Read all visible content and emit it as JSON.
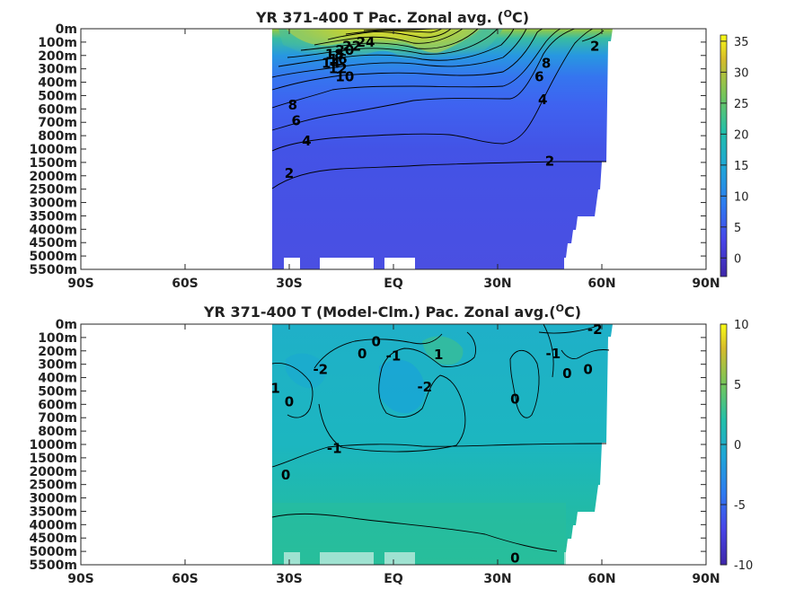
{
  "chart_data": [
    {
      "type": "heatmap",
      "title": "YR 371-400 T Pac. Zonal avg. (",
      "title_sup": "O",
      "title_tail": "C)",
      "x_ticks": [
        "90S",
        "60S",
        "30S",
        "EQ",
        "30N",
        "60N",
        "90N"
      ],
      "x_tick_values": [
        -90,
        -60,
        -30,
        0,
        30,
        60,
        90
      ],
      "xlim": [
        -90,
        90
      ],
      "y_ticks": [
        "0m",
        "100m",
        "200m",
        "300m",
        "400m",
        "500m",
        "600m",
        "700m",
        "800m",
        "1000m",
        "1500m",
        "2000m",
        "2500m",
        "3000m",
        "3500m",
        "4000m",
        "4500m",
        "5000m",
        "5500m"
      ],
      "data_extent": {
        "lat_start": -35,
        "lat_end": 62
      },
      "colorbar": {
        "min": -3,
        "max": 36,
        "ticks": [
          35,
          30,
          25,
          20,
          15,
          10,
          5,
          0
        ]
      },
      "contour_labels": [
        {
          "text": "24",
          "lat": -8,
          "depth_level": 1
        },
        {
          "text": "22",
          "lat": -12,
          "depth_level": 1.3
        },
        {
          "text": "20",
          "lat": -14,
          "depth_level": 1.6
        },
        {
          "text": "18",
          "lat": -17,
          "depth_level": 1.9
        },
        {
          "text": "16",
          "lat": -16,
          "depth_level": 2.3
        },
        {
          "text": "14",
          "lat": -18,
          "depth_level": 2.6
        },
        {
          "text": "12",
          "lat": -16,
          "depth_level": 3.0
        },
        {
          "text": "10",
          "lat": -14,
          "depth_level": 3.6
        },
        {
          "text": "8",
          "lat": -29,
          "depth_level": 5.7
        },
        {
          "text": "6",
          "lat": -28,
          "depth_level": 6.9
        },
        {
          "text": "4",
          "lat": -25,
          "depth_level": 8.4
        },
        {
          "text": "2",
          "lat": -30,
          "depth_level": 10.8
        },
        {
          "text": "2",
          "lat": 45,
          "depth_level": 9.9
        },
        {
          "text": "4",
          "lat": 43,
          "depth_level": 5.3
        },
        {
          "text": "6",
          "lat": 42,
          "depth_level": 3.6
        },
        {
          "text": "8",
          "lat": 44,
          "depth_level": 2.6
        },
        {
          "text": "2",
          "lat": 58,
          "depth_level": 1.3
        }
      ]
    },
    {
      "type": "heatmap",
      "title": "YR 371-400 T (Model-Clm.) Pac. Zonal avg.(",
      "title_sup": "O",
      "title_tail": "C)",
      "x_ticks": [
        "90S",
        "60S",
        "30S",
        "EQ",
        "30N",
        "60N",
        "90N"
      ],
      "x_tick_values": [
        -90,
        -60,
        -30,
        0,
        30,
        60,
        90
      ],
      "xlim": [
        -90,
        90
      ],
      "y_ticks": [
        "0m",
        "100m",
        "200m",
        "300m",
        "400m",
        "500m",
        "600m",
        "700m",
        "800m",
        "1000m",
        "1500m",
        "2000m",
        "2500m",
        "3000m",
        "3500m",
        "4000m",
        "4500m",
        "5000m",
        "5500m"
      ],
      "data_extent": {
        "lat_start": -35,
        "lat_end": 62
      },
      "colorbar": {
        "min": -10,
        "max": 10,
        "ticks": [
          10,
          5,
          0,
          -5,
          -10
        ]
      },
      "contour_labels": [
        {
          "text": "0",
          "lat": -9,
          "depth_level": 2.2
        },
        {
          "text": "0",
          "lat": -5,
          "depth_level": 1.3
        },
        {
          "text": "-1",
          "lat": 0,
          "depth_level": 2.4
        },
        {
          "text": "1",
          "lat": 13,
          "depth_level": 2.3
        },
        {
          "text": "-2",
          "lat": -21,
          "depth_level": 3.4
        },
        {
          "text": "-2",
          "lat": 9,
          "depth_level": 4.7
        },
        {
          "text": "1",
          "lat": -34,
          "depth_level": 4.8
        },
        {
          "text": "0",
          "lat": -30,
          "depth_level": 5.8
        },
        {
          "text": "-1",
          "lat": -17,
          "depth_level": 9.3
        },
        {
          "text": "0",
          "lat": -31,
          "depth_level": 11.3
        },
        {
          "text": "0",
          "lat": 35,
          "depth_level": 5.6
        },
        {
          "text": "-1",
          "lat": 46,
          "depth_level": 2.2
        },
        {
          "text": "0",
          "lat": 50,
          "depth_level": 3.7
        },
        {
          "text": "0",
          "lat": 56,
          "depth_level": 3.4
        },
        {
          "text": "-2",
          "lat": 58,
          "depth_level": 0.4
        },
        {
          "text": "0",
          "lat": 35,
          "depth_level": 17.5
        }
      ]
    }
  ]
}
